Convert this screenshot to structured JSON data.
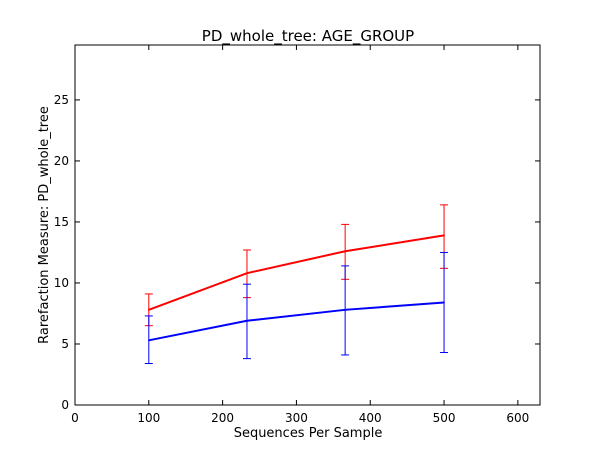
{
  "chart_data": {
    "type": "line",
    "title": "PD_whole_tree: AGE_GROUP",
    "xlabel": "Sequences Per Sample",
    "ylabel": "Rarefaction Measure: PD_whole_tree",
    "xlim": [
      0,
      630
    ],
    "ylim": [
      0,
      29.5
    ],
    "xticks": [
      0,
      100,
      200,
      300,
      400,
      500,
      600
    ],
    "yticks": [
      0,
      5,
      10,
      15,
      20,
      25
    ],
    "grid": false,
    "legend": "none",
    "series": [
      {
        "color": "#ff0000",
        "x": [
          100,
          233,
          366,
          500
        ],
        "y": [
          7.8,
          10.8,
          12.6,
          13.9
        ],
        "err_low": [
          6.5,
          8.8,
          10.3,
          11.2
        ],
        "err_high": [
          9.1,
          12.7,
          14.8,
          16.4
        ]
      },
      {
        "color": "#0000ff",
        "x": [
          100,
          233,
          366,
          500
        ],
        "y": [
          5.3,
          6.9,
          7.8,
          8.4
        ],
        "err_low": [
          3.4,
          3.8,
          4.1,
          4.3
        ],
        "err_high": [
          7.3,
          9.9,
          11.4,
          12.5
        ]
      }
    ]
  }
}
